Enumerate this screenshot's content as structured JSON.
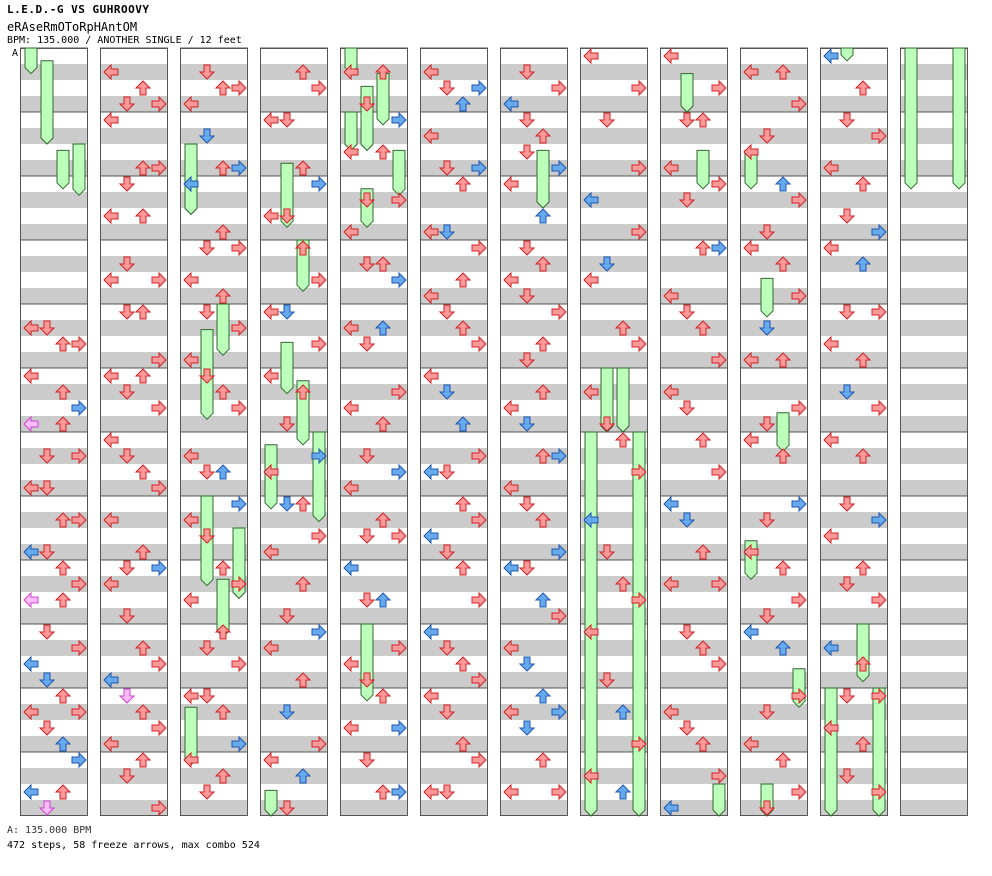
{
  "song": {
    "artist_title": "L.E.D.-G VS GUHROOVY",
    "name": "eRAseRmOToRpHAntOM",
    "info_line": "BPM: 135.000 / ANOTHER SINGLE / 12 feet"
  },
  "bpm_marker": "A",
  "footer": {
    "bpm_change": "A: 135.000 BPM",
    "summary": "472 steps, 58 freeze arrows, max combo 524"
  },
  "colors": {
    "page_bg": "#ffffff",
    "stripe_gray": "#cccccc",
    "column_border": "#555555",
    "arrow_red_fill": "#ff9999",
    "arrow_red_stroke": "#cc2222",
    "arrow_blue_fill": "#66aaee",
    "arrow_blue_stroke": "#2255aa",
    "arrow_pink_fill": "#ffbbff",
    "arrow_pink_stroke": "#cc44cc",
    "freeze_fill": "#bbffbb",
    "freeze_stroke": "#336633"
  },
  "chart_data": {
    "type": "step_chart",
    "mode": "SINGLE",
    "difficulty": "ANOTHER",
    "rating_feet": 12,
    "bpm": 135.0,
    "lanes": [
      "left",
      "down",
      "up",
      "right"
    ],
    "measures_total": 144,
    "measures_per_column": 12,
    "steps": 472,
    "freeze_arrows": 58,
    "max_combo": 524,
    "note_kinds": {
      "red": "quarter note",
      "blue": "eighth note",
      "pink": "sixteenth note",
      "green_bar": "freeze arrow"
    },
    "columns": [
      {
        "index": 1,
        "measures": "1-12",
        "arrows": [
          "left",
          "down",
          "up",
          "right",
          "left",
          "up",
          "right",
          "left",
          "up",
          "down",
          "right",
          "left",
          "down",
          "up",
          "right",
          "left",
          "down",
          "up",
          "right",
          "left",
          "up",
          "down",
          "right",
          "left",
          "down",
          "up",
          "right",
          "left",
          "down",
          "up",
          "right",
          "left",
          "up",
          "down"
        ]
      },
      {
        "index": 2,
        "measures": "13-24",
        "arrows": [
          "left",
          "up",
          "down",
          "right",
          "left",
          "up",
          "right",
          "down",
          "left",
          "up",
          "down",
          "right",
          "left",
          "down",
          "up",
          "right",
          "left",
          "up",
          "down",
          "right",
          "left",
          "down",
          "up",
          "right",
          "left",
          "up",
          "down",
          "right",
          "left",
          "down",
          "up",
          "right",
          "left",
          "down",
          "up",
          "right",
          "left",
          "up",
          "down",
          "right"
        ]
      },
      {
        "index": 3,
        "measures": "25-36",
        "arrows": [
          "down",
          "up",
          "right",
          "left",
          "down",
          "up",
          "right",
          "left",
          "up",
          "down",
          "right",
          "left",
          "up",
          "down",
          "right",
          "left",
          "down",
          "up",
          "right",
          "left",
          "down",
          "up",
          "right",
          "left",
          "down",
          "up",
          "right",
          "left",
          "up",
          "down",
          "right",
          "left",
          "down",
          "up",
          "right",
          "left",
          "up",
          "down"
        ]
      },
      {
        "index": 4,
        "measures": "37-48",
        "arrows": [
          "up",
          "right",
          "left",
          "down",
          "up",
          "right",
          "left",
          "down",
          "up",
          "right",
          "left",
          "down",
          "right",
          "left",
          "up",
          "down",
          "right",
          "left",
          "up",
          "down",
          "right",
          "left",
          "up",
          "down",
          "right",
          "left",
          "up",
          "down",
          "right",
          "left",
          "up",
          "down"
        ]
      },
      {
        "index": 5,
        "measures": "49-60",
        "arrows": [
          "left",
          "up",
          "down",
          "right",
          "left",
          "up",
          "down",
          "right",
          "left",
          "up",
          "down",
          "right",
          "left",
          "up",
          "down",
          "right",
          "left",
          "up",
          "down",
          "right",
          "left",
          "up",
          "down",
          "right",
          "left",
          "down",
          "up",
          "right",
          "left",
          "down",
          "up",
          "right",
          "left",
          "down",
          "up",
          "right"
        ]
      },
      {
        "index": 6,
        "measures": "61-72",
        "arrows": [
          "left",
          "right",
          "down",
          "up",
          "left",
          "right",
          "down",
          "up",
          "left",
          "down",
          "right",
          "up",
          "left",
          "down",
          "up",
          "right",
          "left",
          "down",
          "up",
          "right",
          "left",
          "down",
          "up",
          "right",
          "left",
          "down",
          "up",
          "right",
          "left",
          "down",
          "up",
          "right",
          "left",
          "down",
          "up",
          "right",
          "left",
          "down"
        ]
      },
      {
        "index": 7,
        "measures": "73-84",
        "arrows": [
          "down",
          "right",
          "left",
          "down",
          "up",
          "down",
          "right",
          "left",
          "up",
          "down",
          "up",
          "left",
          "down",
          "right",
          "up",
          "down",
          "up",
          "left",
          "down",
          "up",
          "right",
          "left",
          "down",
          "up",
          "right",
          "left",
          "down",
          "up",
          "right",
          "left",
          "down",
          "up",
          "right",
          "left",
          "down",
          "up",
          "right",
          "left"
        ]
      },
      {
        "index": 8,
        "measures": "85-96",
        "arrows": [
          "left",
          "right",
          "down",
          "right",
          "left",
          "right",
          "down",
          "left",
          "up",
          "right",
          "left",
          "down",
          "up",
          "right",
          "left",
          "down",
          "up",
          "right",
          "left",
          "down",
          "up",
          "right",
          "left",
          "up"
        ]
      },
      {
        "index": 9,
        "measures": "97-108",
        "arrows": [
          "left",
          "right",
          "down",
          "up",
          "left",
          "right",
          "down",
          "up",
          "right",
          "left",
          "down",
          "up",
          "right",
          "left",
          "down",
          "up",
          "right",
          "left",
          "down",
          "up",
          "right",
          "left",
          "down",
          "up",
          "right",
          "left",
          "down",
          "up",
          "right",
          "left"
        ]
      },
      {
        "index": 10,
        "measures": "109-120",
        "arrows": [
          "left",
          "up",
          "right",
          "down",
          "left",
          "up",
          "right",
          "down",
          "left",
          "up",
          "right",
          "down",
          "left",
          "up",
          "right",
          "down",
          "left",
          "up",
          "right",
          "down",
          "left",
          "up",
          "right",
          "down",
          "left",
          "up",
          "right",
          "down",
          "left",
          "up",
          "right",
          "down"
        ]
      },
      {
        "index": 11,
        "measures": "121-132",
        "arrows": [
          "left",
          "up",
          "down",
          "right",
          "left",
          "up",
          "down",
          "right",
          "left",
          "up",
          "down",
          "right",
          "left",
          "up",
          "down",
          "right",
          "left",
          "up",
          "down",
          "right",
          "left",
          "up",
          "down",
          "right",
          "left",
          "up",
          "down",
          "right",
          "left",
          "up",
          "down",
          "right"
        ]
      },
      {
        "index": 12,
        "measures": "133-144",
        "arrows": []
      }
    ]
  }
}
